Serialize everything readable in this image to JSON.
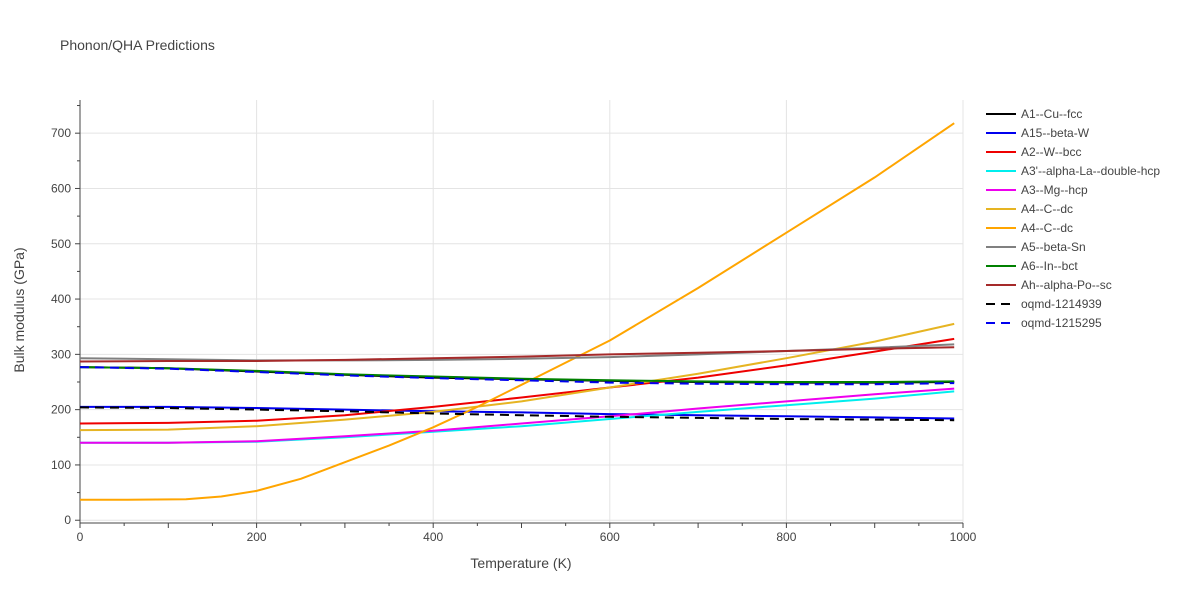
{
  "chart_data": {
    "type": "line",
    "title": "Phonon/QHA Predictions",
    "xlabel": "Temperature (K)",
    "ylabel": "Bulk modulus (GPa)",
    "xlim": [
      0,
      1000
    ],
    "ylim": [
      -5,
      760
    ],
    "xticks": [
      0,
      200,
      400,
      600,
      800,
      1000
    ],
    "yticks": [
      0,
      100,
      200,
      300,
      400,
      500,
      600,
      700
    ],
    "grid": true,
    "legend_position": "right",
    "series": [
      {
        "name": "A1--Cu--fcc",
        "color": "#000000",
        "dash": "solid",
        "x": [
          0,
          100,
          200,
          300,
          400,
          500,
          600,
          700,
          800,
          900,
          990
        ],
        "y": [
          277,
          275,
          269,
          263,
          258,
          255,
          252,
          250,
          249,
          249,
          250
        ]
      },
      {
        "name": "A15--beta-W",
        "color": "#0000ee",
        "dash": "solid",
        "x": [
          0,
          100,
          200,
          300,
          400,
          500,
          600,
          700,
          800,
          900,
          990
        ],
        "y": [
          205,
          205,
          203,
          200,
          197,
          195,
          192,
          190,
          188,
          186,
          184
        ]
      },
      {
        "name": "A2--W--bcc",
        "color": "#ee0000",
        "dash": "solid",
        "x": [
          0,
          100,
          200,
          300,
          400,
          500,
          600,
          700,
          800,
          900,
          990
        ],
        "y": [
          175,
          176,
          180,
          190,
          205,
          222,
          240,
          258,
          280,
          305,
          328
        ]
      },
      {
        "name": "A3'--alpha-La--double-hcp",
        "color": "#00eeee",
        "dash": "solid",
        "x": [
          0,
          100,
          200,
          300,
          400,
          500,
          600,
          700,
          800,
          900,
          990
        ],
        "y": [
          140,
          140,
          142,
          150,
          160,
          170,
          183,
          196,
          208,
          220,
          233
        ]
      },
      {
        "name": "A3--Mg--hcp",
        "color": "#ee00ee",
        "dash": "solid",
        "x": [
          0,
          100,
          200,
          300,
          400,
          500,
          600,
          700,
          800,
          900,
          990
        ],
        "y": [
          140,
          140,
          143,
          152,
          162,
          175,
          188,
          202,
          215,
          228,
          238
        ]
      },
      {
        "name": "A4--C--dc",
        "color": "#e6b422",
        "dash": "solid",
        "x": [
          0,
          100,
          200,
          300,
          400,
          500,
          600,
          700,
          800,
          900,
          990
        ],
        "y": [
          163,
          164,
          170,
          182,
          196,
          215,
          240,
          265,
          293,
          323,
          355
        ]
      },
      {
        "name": "A4--C--dc",
        "color": "#ffa500",
        "dash": "solid",
        "x": [
          0,
          50,
          120,
          160,
          200,
          250,
          300,
          350,
          400,
          450,
          500,
          550,
          600,
          700,
          800,
          900,
          990
        ],
        "y": [
          37,
          37,
          38,
          43,
          53,
          75,
          105,
          135,
          168,
          205,
          245,
          285,
          325,
          420,
          520,
          620,
          718
        ]
      },
      {
        "name": "A5--beta-Sn",
        "color": "#808080",
        "dash": "solid",
        "x": [
          0,
          100,
          200,
          300,
          400,
          500,
          600,
          700,
          800,
          900,
          990
        ],
        "y": [
          293,
          291,
          289,
          289,
          290,
          292,
          295,
          300,
          306,
          312,
          318
        ]
      },
      {
        "name": "A6--In--bct",
        "color": "#008000",
        "dash": "solid",
        "x": [
          0,
          100,
          200,
          300,
          400,
          500,
          600,
          700,
          800,
          900,
          990
        ],
        "y": [
          277,
          275,
          270,
          264,
          260,
          256,
          253,
          251,
          250,
          250,
          251
        ]
      },
      {
        "name": "Ah--alpha-Po--sc",
        "color": "#a52a2a",
        "dash": "solid",
        "x": [
          0,
          100,
          200,
          300,
          400,
          500,
          600,
          700,
          800,
          900,
          990
        ],
        "y": [
          287,
          288,
          288,
          290,
          293,
          296,
          300,
          303,
          306,
          310,
          313
        ]
      },
      {
        "name": "oqmd-1214939",
        "color": "#000000",
        "dash": "dash",
        "x": [
          0,
          100,
          200,
          300,
          400,
          500,
          600,
          700,
          800,
          900,
          990
        ],
        "y": [
          204,
          203,
          200,
          197,
          193,
          190,
          187,
          185,
          183,
          182,
          181
        ]
      },
      {
        "name": "oqmd-1215295",
        "color": "#0000ee",
        "dash": "dash",
        "x": [
          0,
          100,
          200,
          300,
          400,
          500,
          600,
          700,
          800,
          900,
          990
        ],
        "y": [
          277,
          274,
          268,
          262,
          257,
          253,
          249,
          247,
          246,
          246,
          248
        ]
      }
    ]
  }
}
